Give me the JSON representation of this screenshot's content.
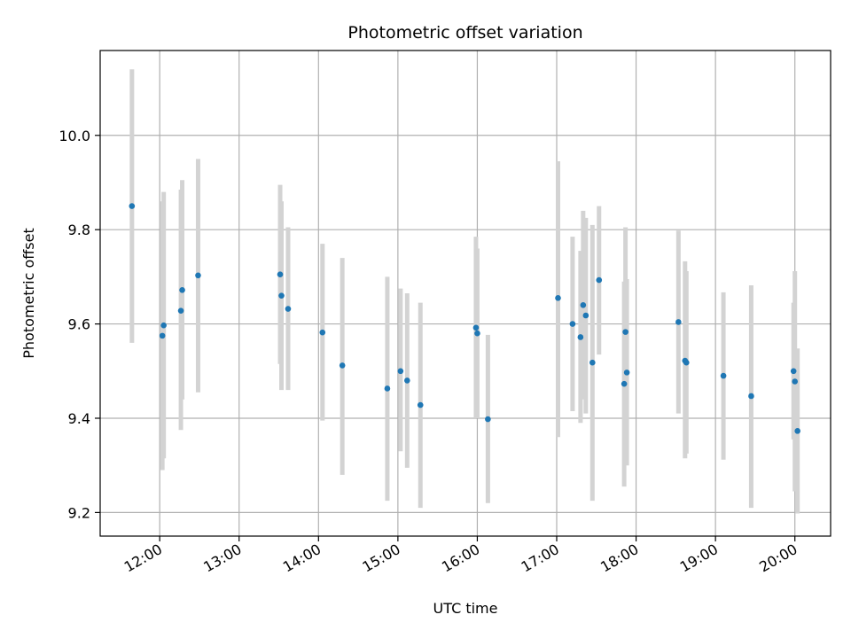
{
  "chart_data": {
    "type": "scatter",
    "title": "Photometric offset variation",
    "xlabel": "UTC time",
    "ylabel": "Photometric offset",
    "xlim": [
      "11:15",
      "20:27"
    ],
    "ylim": [
      9.15,
      10.18
    ],
    "grid": true,
    "x_ticks": [
      "12:00",
      "13:00",
      "14:00",
      "15:00",
      "16:00",
      "17:00",
      "18:00",
      "19:00",
      "20:00"
    ],
    "y_ticks": [
      "9.2",
      "9.4",
      "9.6",
      "9.8",
      "10.0"
    ],
    "points": [
      {
        "time": "11:39",
        "y": 9.85,
        "yerr_low": 9.56,
        "yerr_high": 10.14
      },
      {
        "time": "12:02",
        "y": 9.575,
        "yerr_low": 9.29,
        "yerr_high": 9.86
      },
      {
        "time": "12:03",
        "y": 9.597,
        "yerr_low": 9.315,
        "yerr_high": 9.88
      },
      {
        "time": "12:16",
        "y": 9.628,
        "yerr_low": 9.375,
        "yerr_high": 9.885
      },
      {
        "time": "12:17",
        "y": 9.672,
        "yerr_low": 9.44,
        "yerr_high": 9.905
      },
      {
        "time": "12:29",
        "y": 9.703,
        "yerr_low": 9.455,
        "yerr_high": 9.95
      },
      {
        "time": "13:31",
        "y": 9.705,
        "yerr_low": 9.515,
        "yerr_high": 9.895
      },
      {
        "time": "13:32",
        "y": 9.66,
        "yerr_low": 9.46,
        "yerr_high": 9.86
      },
      {
        "time": "13:37",
        "y": 9.632,
        "yerr_low": 9.46,
        "yerr_high": 9.805
      },
      {
        "time": "14:03",
        "y": 9.582,
        "yerr_low": 9.395,
        "yerr_high": 9.77
      },
      {
        "time": "14:18",
        "y": 9.512,
        "yerr_low": 9.28,
        "yerr_high": 9.74
      },
      {
        "time": "14:52",
        "y": 9.463,
        "yerr_low": 9.225,
        "yerr_high": 9.7
      },
      {
        "time": "15:02",
        "y": 9.5,
        "yerr_low": 9.33,
        "yerr_high": 9.675
      },
      {
        "time": "15:07",
        "y": 9.48,
        "yerr_low": 9.295,
        "yerr_high": 9.665
      },
      {
        "time": "15:17",
        "y": 9.428,
        "yerr_low": 9.21,
        "yerr_high": 9.645
      },
      {
        "time": "15:59",
        "y": 9.592,
        "yerr_low": 9.4,
        "yerr_high": 9.785
      },
      {
        "time": "16:00",
        "y": 9.58,
        "yerr_low": 9.4,
        "yerr_high": 9.76
      },
      {
        "time": "16:08",
        "y": 9.398,
        "yerr_low": 9.22,
        "yerr_high": 9.577
      },
      {
        "time": "17:01",
        "y": 9.655,
        "yerr_low": 9.36,
        "yerr_high": 9.945
      },
      {
        "time": "17:12",
        "y": 9.6,
        "yerr_low": 9.415,
        "yerr_high": 9.785
      },
      {
        "time": "17:18",
        "y": 9.572,
        "yerr_low": 9.39,
        "yerr_high": 9.755
      },
      {
        "time": "17:20",
        "y": 9.64,
        "yerr_low": 9.44,
        "yerr_high": 9.84
      },
      {
        "time": "17:22",
        "y": 9.618,
        "yerr_low": 9.41,
        "yerr_high": 9.825
      },
      {
        "time": "17:27",
        "y": 9.518,
        "yerr_low": 9.225,
        "yerr_high": 9.81
      },
      {
        "time": "17:32",
        "y": 9.693,
        "yerr_low": 9.535,
        "yerr_high": 9.85
      },
      {
        "time": "17:51",
        "y": 9.473,
        "yerr_low": 9.255,
        "yerr_high": 9.69
      },
      {
        "time": "17:52",
        "y": 9.583,
        "yerr_low": 9.365,
        "yerr_high": 9.805
      },
      {
        "time": "17:53",
        "y": 9.497,
        "yerr_low": 9.3,
        "yerr_high": 9.695
      },
      {
        "time": "18:32",
        "y": 9.604,
        "yerr_low": 9.41,
        "yerr_high": 9.798
      },
      {
        "time": "18:37",
        "y": 9.522,
        "yerr_low": 9.315,
        "yerr_high": 9.733
      },
      {
        "time": "18:38",
        "y": 9.518,
        "yerr_low": 9.325,
        "yerr_high": 9.712
      },
      {
        "time": "19:06",
        "y": 9.49,
        "yerr_low": 9.312,
        "yerr_high": 9.667
      },
      {
        "time": "19:27",
        "y": 9.447,
        "yerr_low": 9.21,
        "yerr_high": 9.682
      },
      {
        "time": "19:59",
        "y": 9.5,
        "yerr_low": 9.355,
        "yerr_high": 9.645
      },
      {
        "time": "20:00",
        "y": 9.478,
        "yerr_low": 9.245,
        "yerr_high": 9.712
      },
      {
        "time": "20:02",
        "y": 9.373,
        "yerr_low": 9.198,
        "yerr_high": 9.548
      }
    ],
    "colors": {
      "marker": "#1f77b4",
      "errorbar": "#d3d3d3",
      "grid": "#b0b0b0",
      "axes": "#000000"
    }
  }
}
